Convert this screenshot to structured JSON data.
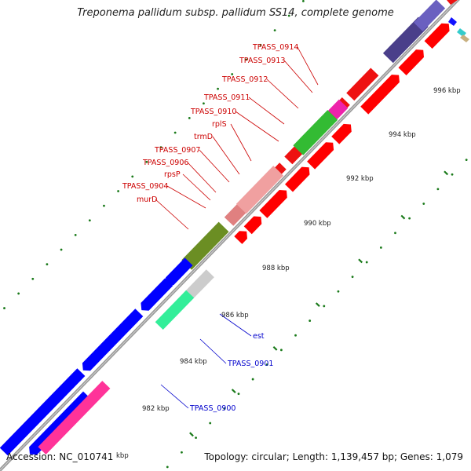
{
  "title": "Treponema pallidum subsp. pallidum SS14, complete genome",
  "footer": {
    "accession": "Accession: NC_010741",
    "topology": "Topology: circular; Length: 1,139,457 bp; Genes: 1,079"
  },
  "colors": {
    "forward_gene": "#ff0000",
    "reverse_gene": "#0000ff",
    "forward_label": "#cc0000",
    "reverse_label": "#0000cc",
    "backbone": "#999999",
    "tick": "#1a7a1a"
  },
  "scale_labels": [
    "996 kbp",
    "994 kbp",
    "992 kbp",
    "990 kbp",
    "988 kbp",
    "986 kbp",
    "984 kbp",
    "982 kbp",
    "kbp"
  ],
  "gene_labels": {
    "forward": [
      "TPASS_0914",
      "TPASS_0913",
      "TPASS_0912",
      "TPASS_0911",
      "TPASS_0910",
      "rplS",
      "trmD",
      "TPASS_0907",
      "TPASS_0906",
      "rpsP",
      "TPASS_0904",
      "murD"
    ],
    "reverse": [
      "est",
      "TPASS_0901",
      "TPASS_0900"
    ]
  }
}
